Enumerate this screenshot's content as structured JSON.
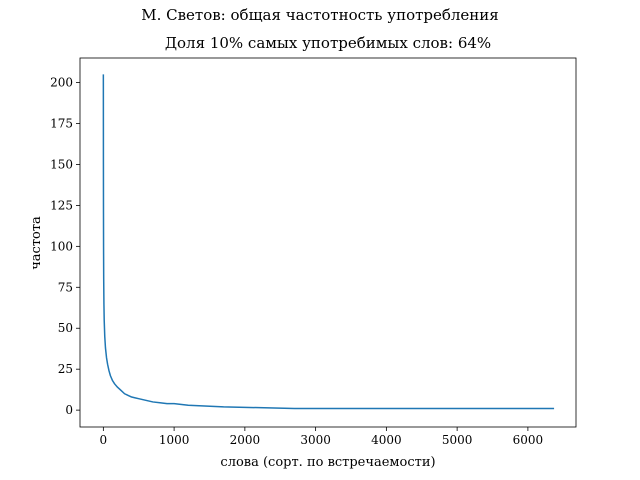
{
  "chart_data": {
    "type": "line",
    "suptitle": "М. Светов: общая частотность употребления",
    "title": "Доля 10% самых употребимых слов: 64%",
    "xlabel": "слова (сорт. по встречаемости)",
    "ylabel": "частота",
    "xlim": [
      -330,
      6680
    ],
    "ylim": [
      -10.3,
      215
    ],
    "xticks": [
      0,
      1000,
      2000,
      3000,
      4000,
      5000,
      6000
    ],
    "xtick_labels": [
      "0",
      "1000",
      "2000",
      "3000",
      "4000",
      "5000",
      "6000"
    ],
    "yticks": [
      0,
      25,
      50,
      75,
      100,
      125,
      150,
      175,
      200
    ],
    "ytick_labels": [
      "0",
      "25",
      "50",
      "75",
      "100",
      "125",
      "150",
      "175",
      "200"
    ],
    "grid": false,
    "series": [
      {
        "color": "#1f77b4",
        "x": [
          0,
          1,
          2,
          3,
          5,
          8,
          12,
          20,
          30,
          45,
          60,
          80,
          100,
          130,
          160,
          200,
          250,
          300,
          350,
          400,
          450,
          500,
          600,
          700,
          800,
          900,
          1000,
          1200,
          1700,
          2700,
          6370
        ],
        "y": [
          205,
          150,
          120,
          100,
          80,
          65,
          55,
          45,
          38,
          32,
          28,
          24,
          21,
          18,
          16,
          14,
          12,
          10,
          9,
          8,
          7.5,
          7,
          6,
          5,
          4.5,
          4,
          4,
          3,
          2,
          1,
          1
        ]
      }
    ]
  }
}
